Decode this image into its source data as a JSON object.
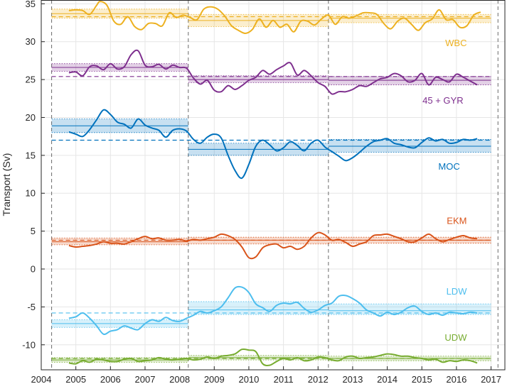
{
  "chart_data": {
    "type": "line",
    "title": "",
    "xlabel": "",
    "ylabel": "Transport (Sv)",
    "xlim": [
      2004,
      2017.4
    ],
    "ylim": [
      -13.3,
      35.5
    ],
    "xticks": [
      "2004",
      "2005",
      "2006",
      "2007",
      "2008",
      "2009",
      "2010",
      "2011",
      "2012",
      "2013",
      "2014",
      "2015",
      "2016",
      "2017"
    ],
    "yticks": [
      "-10",
      "-5",
      "0",
      "5",
      "10",
      "15",
      "20",
      "25",
      "30",
      "35"
    ],
    "grid": true,
    "vlines": [
      2004.3,
      2008.25,
      2012.3,
      2017.2
    ],
    "series": [
      {
        "name": "WBC",
        "color": "#EDB120",
        "label_x": 2016.3,
        "label_y": 29.9,
        "mean_line": 33.3,
        "bands": [
          {
            "x0": 2004.3,
            "x1": 2008.25,
            "mean": 33.7,
            "lo": 33.1,
            "hi": 34.3
          },
          {
            "x0": 2008.25,
            "x1": 2012.3,
            "mean": 32.8,
            "lo": 32.0,
            "hi": 33.6
          },
          {
            "x0": 2012.3,
            "x1": 2017.0,
            "mean": 33.1,
            "lo": 32.5,
            "hi": 33.6
          }
        ],
        "x": [
          2004.8,
          2005.0,
          2005.2,
          2005.4,
          2005.6,
          2005.7,
          2005.9,
          2006.1,
          2006.3,
          2006.5,
          2006.7,
          2006.9,
          2007.1,
          2007.3,
          2007.5,
          2007.7,
          2007.9,
          2008.1,
          2008.3,
          2008.5,
          2008.7,
          2008.9,
          2009.1,
          2009.3,
          2009.5,
          2009.7,
          2009.9,
          2010.1,
          2010.3,
          2010.5,
          2010.7,
          2010.9,
          2011.1,
          2011.3,
          2011.5,
          2011.7,
          2011.9,
          2012.1,
          2012.3,
          2012.5,
          2012.7,
          2012.9,
          2013.1,
          2013.3,
          2013.5,
          2013.7,
          2013.9,
          2014.1,
          2014.3,
          2014.5,
          2014.7,
          2014.9,
          2015.1,
          2015.3,
          2015.5,
          2015.7,
          2015.9,
          2016.1,
          2016.3,
          2016.5,
          2016.7
        ],
        "y": [
          34.1,
          34.2,
          34.1,
          33.6,
          34.8,
          35.3,
          34.8,
          32.7,
          32.3,
          33.3,
          32.0,
          31.6,
          32.4,
          32.4,
          32.1,
          33.8,
          33.2,
          33.5,
          33.2,
          32.9,
          34.3,
          34.6,
          34.3,
          33.4,
          32.1,
          31.5,
          31.1,
          31.6,
          33.0,
          31.9,
          32.8,
          31.9,
          32.3,
          31.3,
          32.7,
          32.7,
          32.2,
          33.0,
          33.5,
          32.3,
          33.3,
          33.1,
          33.4,
          33.8,
          33.8,
          33.6,
          32.4,
          31.7,
          32.7,
          33.1,
          32.3,
          31.5,
          32.5,
          33.0,
          34.2,
          32.9,
          32.9,
          31.9,
          32.1,
          33.5,
          33.9
        ]
      },
      {
        "name": "45 + GYR",
        "color": "#7E2F8E",
        "label_x": 2016.2,
        "label_y": 22.3,
        "mean_line": 25.4,
        "bands": [
          {
            "x0": 2004.3,
            "x1": 2008.25,
            "mean": 26.6,
            "lo": 26.1,
            "hi": 27.1
          },
          {
            "x0": 2008.25,
            "x1": 2012.3,
            "mean": 25.0,
            "lo": 24.6,
            "hi": 25.5
          },
          {
            "x0": 2012.3,
            "x1": 2017.0,
            "mean": 24.9,
            "lo": 24.3,
            "hi": 25.4
          }
        ],
        "x": [
          2004.8,
          2005.0,
          2005.2,
          2005.4,
          2005.6,
          2005.8,
          2006.0,
          2006.2,
          2006.4,
          2006.6,
          2006.8,
          2007.0,
          2007.2,
          2007.4,
          2007.6,
          2007.8,
          2008.0,
          2008.2,
          2008.4,
          2008.6,
          2008.8,
          2009.0,
          2009.2,
          2009.4,
          2009.6,
          2009.8,
          2010.0,
          2010.2,
          2010.4,
          2010.6,
          2010.8,
          2011.0,
          2011.2,
          2011.4,
          2011.6,
          2011.8,
          2012.0,
          2012.2,
          2012.4,
          2012.6,
          2012.8,
          2013.0,
          2013.2,
          2013.4,
          2013.6,
          2013.8,
          2014.0,
          2014.2,
          2014.4,
          2014.6,
          2014.8,
          2015.0,
          2015.2,
          2015.4,
          2015.6,
          2015.8,
          2016.0,
          2016.2,
          2016.4,
          2016.6
        ],
        "y": [
          25.9,
          26.0,
          25.5,
          26.7,
          26.8,
          26.3,
          27.1,
          26.4,
          26.7,
          28.3,
          28.8,
          26.9,
          26.7,
          27.0,
          26.4,
          26.9,
          26.6,
          26.5,
          25.2,
          24.4,
          24.9,
          23.6,
          23.4,
          24.2,
          23.7,
          24.2,
          24.9,
          25.3,
          26.2,
          25.7,
          26.3,
          26.8,
          27.2,
          25.6,
          26.2,
          25.5,
          24.6,
          24.1,
          23.1,
          23.4,
          23.4,
          23.7,
          24.2,
          24.1,
          24.6,
          25.1,
          25.3,
          25.8,
          25.5,
          24.7,
          24.9,
          25.8,
          24.3,
          25.3,
          25.0,
          24.7,
          25.7,
          25.3,
          24.8,
          24.3
        ]
      },
      {
        "name": "MOC",
        "color": "#0072BD",
        "label_x": 2016.1,
        "label_y": 13.6,
        "mean_line": 17.0,
        "bands": [
          {
            "x0": 2004.3,
            "x1": 2008.25,
            "mean": 18.9,
            "lo": 18.0,
            "hi": 19.8
          },
          {
            "x0": 2008.25,
            "x1": 2012.3,
            "mean": 15.8,
            "lo": 15.0,
            "hi": 16.6
          },
          {
            "x0": 2012.3,
            "x1": 2017.0,
            "mean": 16.2,
            "lo": 15.4,
            "hi": 17.1
          }
        ],
        "x": [
          2004.8,
          2005.0,
          2005.2,
          2005.4,
          2005.6,
          2005.8,
          2006.0,
          2006.2,
          2006.4,
          2006.6,
          2006.8,
          2007.0,
          2007.2,
          2007.4,
          2007.6,
          2007.8,
          2008.0,
          2008.2,
          2008.4,
          2008.6,
          2008.8,
          2009.0,
          2009.2,
          2009.4,
          2009.6,
          2009.8,
          2010.0,
          2010.2,
          2010.4,
          2010.6,
          2010.8,
          2011.0,
          2011.2,
          2011.4,
          2011.6,
          2011.8,
          2012.0,
          2012.2,
          2012.4,
          2012.6,
          2012.8,
          2013.0,
          2013.2,
          2013.4,
          2013.6,
          2013.8,
          2014.0,
          2014.2,
          2014.4,
          2014.6,
          2014.8,
          2015.0,
          2015.2,
          2015.4,
          2015.6,
          2015.8,
          2016.0,
          2016.2,
          2016.4,
          2016.6
        ],
        "y": [
          18.1,
          17.8,
          17.5,
          18.4,
          19.7,
          21.0,
          20.4,
          19.4,
          19.1,
          18.6,
          19.8,
          19.0,
          18.6,
          18.3,
          17.4,
          18.3,
          18.5,
          18.2,
          17.1,
          16.6,
          17.4,
          17.8,
          17.3,
          15.0,
          13.0,
          12.0,
          13.8,
          16.2,
          17.0,
          16.4,
          15.6,
          16.0,
          16.8,
          16.3,
          15.6,
          16.6,
          17.0,
          16.1,
          15.5,
          14.9,
          14.3,
          14.7,
          15.4,
          16.2,
          16.8,
          17.0,
          17.2,
          16.6,
          16.4,
          16.1,
          16.0,
          16.7,
          17.3,
          16.9,
          17.1,
          16.6,
          16.7,
          17.1,
          17.0,
          17.2
        ]
      },
      {
        "name": "EKM",
        "color": "#D95319",
        "label_x": 2016.3,
        "label_y": 6.4,
        "mean_line": 3.8,
        "bands": [
          {
            "x0": 2004.3,
            "x1": 2008.25,
            "mean": 3.6,
            "lo": 3.2,
            "hi": 4.1
          },
          {
            "x0": 2008.25,
            "x1": 2012.3,
            "mean": 3.8,
            "lo": 3.3,
            "hi": 4.2
          },
          {
            "x0": 2012.3,
            "x1": 2017.0,
            "mean": 3.8,
            "lo": 3.4,
            "hi": 4.2
          }
        ],
        "x": [
          2004.8,
          2005.0,
          2005.2,
          2005.4,
          2005.6,
          2005.8,
          2006.0,
          2006.2,
          2006.4,
          2006.6,
          2006.8,
          2007.0,
          2007.2,
          2007.4,
          2007.6,
          2007.8,
          2008.0,
          2008.2,
          2008.4,
          2008.6,
          2008.8,
          2009.0,
          2009.2,
          2009.4,
          2009.6,
          2009.8,
          2010.0,
          2010.2,
          2010.4,
          2010.6,
          2010.8,
          2011.0,
          2011.2,
          2011.4,
          2011.6,
          2011.8,
          2012.0,
          2012.2,
          2012.4,
          2012.6,
          2012.8,
          2013.0,
          2013.2,
          2013.4,
          2013.6,
          2013.8,
          2014.0,
          2014.2,
          2014.4,
          2014.6,
          2014.8,
          2015.0,
          2015.2,
          2015.4,
          2015.6,
          2015.8,
          2016.0,
          2016.2,
          2016.4,
          2016.6
        ],
        "y": [
          3.1,
          2.9,
          3.0,
          3.1,
          3.3,
          3.6,
          3.4,
          3.4,
          3.3,
          3.6,
          4.0,
          4.3,
          4.0,
          4.1,
          3.8,
          3.8,
          3.9,
          3.7,
          3.9,
          3.8,
          4.0,
          4.2,
          4.6,
          4.4,
          3.9,
          2.9,
          1.5,
          1.6,
          2.8,
          3.2,
          3.3,
          2.8,
          3.0,
          2.6,
          3.0,
          4.1,
          4.8,
          4.5,
          3.8,
          3.9,
          3.5,
          3.0,
          3.3,
          3.6,
          4.4,
          4.5,
          4.6,
          4.3,
          4.0,
          3.6,
          3.6,
          4.1,
          4.6,
          4.0,
          3.6,
          3.9,
          4.2,
          4.4,
          4.1,
          4.0
        ]
      },
      {
        "name": "LDW",
        "color": "#4DBEEE",
        "label_x": 2016.3,
        "label_y": -2.9,
        "mean_line": -5.8,
        "bands": [
          {
            "x0": 2004.3,
            "x1": 2008.25,
            "mean": -7.2,
            "lo": -7.7,
            "hi": -6.7
          },
          {
            "x0": 2008.25,
            "x1": 2012.3,
            "mean": -5.4,
            "lo": -6.0,
            "hi": -4.3
          },
          {
            "x0": 2012.3,
            "x1": 2017.0,
            "mean": -5.5,
            "lo": -6.0,
            "hi": -4.6
          }
        ],
        "x": [
          2004.8,
          2005.0,
          2005.2,
          2005.4,
          2005.6,
          2005.8,
          2006.0,
          2006.2,
          2006.4,
          2006.6,
          2006.8,
          2007.0,
          2007.2,
          2007.4,
          2007.6,
          2007.8,
          2008.0,
          2008.2,
          2008.4,
          2008.6,
          2008.8,
          2009.0,
          2009.2,
          2009.4,
          2009.6,
          2009.8,
          2010.0,
          2010.2,
          2010.4,
          2010.6,
          2010.8,
          2011.0,
          2011.2,
          2011.4,
          2011.6,
          2011.8,
          2012.0,
          2012.2,
          2012.4,
          2012.6,
          2012.8,
          2013.0,
          2013.2,
          2013.4,
          2013.6,
          2013.8,
          2014.0,
          2014.2,
          2014.4,
          2014.6,
          2014.8,
          2015.0,
          2015.2,
          2015.4,
          2015.6,
          2015.8,
          2016.0,
          2016.2,
          2016.4,
          2016.6
        ],
        "y": [
          -6.5,
          -6.3,
          -5.8,
          -6.5,
          -7.5,
          -8.6,
          -8.2,
          -8.0,
          -7.5,
          -7.8,
          -8.0,
          -7.2,
          -6.7,
          -6.9,
          -6.4,
          -6.8,
          -6.9,
          -6.5,
          -6.1,
          -5.6,
          -5.8,
          -5.5,
          -5.0,
          -3.8,
          -2.5,
          -2.4,
          -3.1,
          -4.6,
          -5.1,
          -5.6,
          -4.8,
          -4.5,
          -4.6,
          -4.4,
          -5.2,
          -5.7,
          -5.4,
          -4.8,
          -4.5,
          -3.6,
          -3.5,
          -3.9,
          -4.5,
          -5.4,
          -5.8,
          -6.2,
          -5.7,
          -6.0,
          -5.7,
          -5.1,
          -4.9,
          -5.6,
          -6.0,
          -5.8,
          -6.1,
          -5.7,
          -5.8,
          -5.9,
          -5.7,
          -5.8
        ]
      },
      {
        "name": "UDW",
        "color": "#77AC30",
        "label_x": 2016.3,
        "label_y": -9.0,
        "mean_line": -11.8,
        "bands": [
          {
            "x0": 2004.3,
            "x1": 2008.25,
            "mean": -12.0,
            "lo": -12.3,
            "hi": -11.7
          },
          {
            "x0": 2008.25,
            "x1": 2012.3,
            "mean": -11.7,
            "lo": -12.0,
            "hi": -11.4
          },
          {
            "x0": 2012.3,
            "x1": 2017.0,
            "mean": -11.8,
            "lo": -12.1,
            "hi": -11.5
          }
        ],
        "x": [
          2004.8,
          2005.0,
          2005.2,
          2005.4,
          2005.6,
          2005.8,
          2006.0,
          2006.2,
          2006.4,
          2006.6,
          2006.8,
          2007.0,
          2007.2,
          2007.4,
          2007.6,
          2007.8,
          2008.0,
          2008.2,
          2008.4,
          2008.6,
          2008.8,
          2009.0,
          2009.2,
          2009.4,
          2009.6,
          2009.8,
          2010.0,
          2010.2,
          2010.4,
          2010.6,
          2010.8,
          2011.0,
          2011.2,
          2011.4,
          2011.6,
          2011.8,
          2012.0,
          2012.2,
          2012.4,
          2012.6,
          2012.8,
          2013.0,
          2013.2,
          2013.4,
          2013.6,
          2013.8,
          2014.0,
          2014.2,
          2014.4,
          2014.6,
          2014.8,
          2015.0,
          2015.2,
          2015.4,
          2015.6,
          2015.8,
          2016.0,
          2016.2,
          2016.4,
          2016.6
        ],
        "y": [
          -12.4,
          -12.5,
          -12.1,
          -12.3,
          -11.9,
          -12.0,
          -12.2,
          -12.2,
          -11.9,
          -11.8,
          -12.2,
          -12.1,
          -12.0,
          -11.7,
          -11.9,
          -12.0,
          -11.9,
          -11.8,
          -12.0,
          -11.9,
          -11.6,
          -11.8,
          -11.5,
          -11.4,
          -11.2,
          -10.6,
          -10.7,
          -10.9,
          -12.5,
          -12.7,
          -12.2,
          -11.8,
          -12.0,
          -11.7,
          -12.1,
          -12.0,
          -11.6,
          -11.7,
          -12.0,
          -12.1,
          -11.6,
          -11.5,
          -11.8,
          -11.7,
          -11.6,
          -11.4,
          -11.2,
          -11.3,
          -11.5,
          -11.5,
          -11.7,
          -11.8,
          -12.0,
          -11.9,
          -12.3,
          -12.1,
          -12.2,
          -12.0,
          -12.1,
          -12.4
        ]
      }
    ]
  }
}
